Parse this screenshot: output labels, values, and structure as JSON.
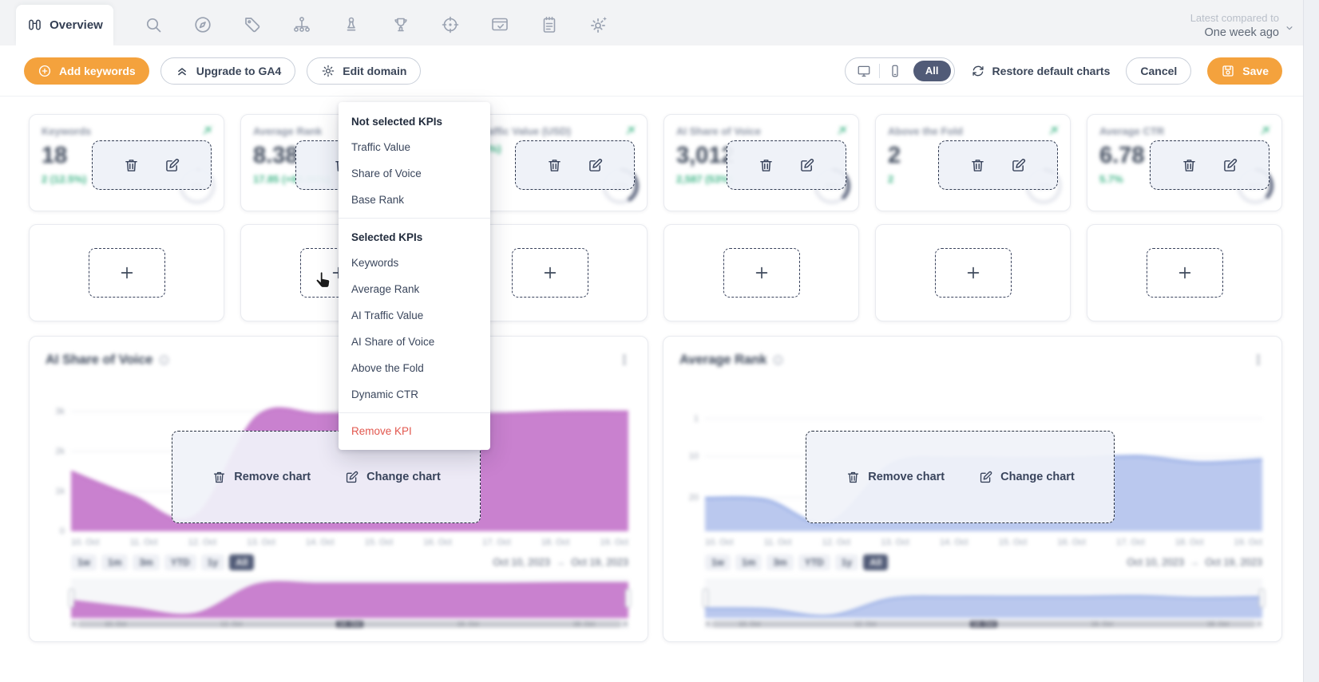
{
  "topnav": {
    "active_tab": "Overview",
    "compare_label": "Latest compared to",
    "compare_value": "One week ago"
  },
  "toolbar": {
    "add_keywords": "Add keywords",
    "upgrade_ga4": "Upgrade to GA4",
    "edit_domain": "Edit domain",
    "device_all": "All",
    "restore_charts": "Restore default charts",
    "cancel": "Cancel",
    "save": "Save"
  },
  "kpi_cards": [
    {
      "title": "Keywords",
      "value": "18",
      "delta": "2 (12.5%)",
      "gauge": "0%",
      "gauge_pct": 2
    },
    {
      "title": "Average Rank",
      "value": "8.38",
      "delta": "17.85 (+68.06%)",
      "gauge": "",
      "gauge_pct": null
    },
    {
      "title": "AI Traffic Value (USD)",
      "value": "",
      "delta": "(58.9%)",
      "gauge": "42%",
      "gauge_pct": 42
    },
    {
      "title": "AI Share of Voice",
      "value": "3,012",
      "delta": "2,587 (53%)",
      "gauge": "39%",
      "gauge_pct": 39
    },
    {
      "title": "Above the Fold",
      "value": "2",
      "delta": "2",
      "gauge": "11%",
      "gauge_pct": 11
    },
    {
      "title": "Average CTR",
      "value": "6.78",
      "delta": "5.7%",
      "gauge": "38%",
      "gauge_pct": 38
    }
  ],
  "kpi_menu": {
    "section1_header": "Not selected KPIs",
    "section1_items": [
      "Traffic Value",
      "Share of Voice",
      "Base Rank"
    ],
    "section2_header": "Selected KPIs",
    "section2_items": [
      "Keywords",
      "Average Rank",
      "AI Traffic Value",
      "AI Share of Voice",
      "Above the Fold",
      "Dynamic CTR"
    ],
    "remove_item": "Remove KPI"
  },
  "charts": [
    {
      "title": "AI Share of Voice",
      "overlay_remove": "Remove chart",
      "overlay_change": "Change chart",
      "range_buttons": [
        "1w",
        "1m",
        "3m",
        "YTD",
        "1y",
        "All"
      ],
      "active_range": "All",
      "date_from": "Oct 10, 2023",
      "date_separator": "→",
      "date_to": "Oct 19, 2023",
      "scroll_labels": [
        "10. Oct",
        "12. Oct",
        "14. Oct",
        "16. Oct",
        "18. Oct"
      ]
    },
    {
      "title": "Average Rank",
      "overlay_remove": "Remove chart",
      "overlay_change": "Change chart",
      "range_buttons": [
        "1w",
        "1m",
        "3m",
        "YTD",
        "1y",
        "All"
      ],
      "active_range": "All",
      "date_from": "Oct 10, 2023",
      "date_separator": "→",
      "date_to": "Oct 19, 2023",
      "scroll_labels": [
        "10. Oct",
        "12. Oct",
        "14. Oct",
        "16. Oct",
        "18. Oct"
      ]
    }
  ],
  "chart_data": [
    {
      "type": "area",
      "title": "AI Share of Voice",
      "x": [
        "10. Oct",
        "11. Oct",
        "12. Oct",
        "13. Oct",
        "14. Oct",
        "15. Oct",
        "16. Oct",
        "17. Oct",
        "18. Oct",
        "19. Oct"
      ],
      "ylim": [
        0,
        3400
      ],
      "yticks": [
        3000,
        2000,
        1000,
        0
      ],
      "ytick_labels": [
        "3k",
        "2k",
        "1k",
        "0"
      ],
      "inverted": false,
      "legend": "off",
      "grid": "on",
      "series": [
        {
          "name": "AI Share of Voice",
          "color": "#bf72c6",
          "fill": "#c981cf",
          "values": [
            1500,
            880,
            380,
            2880,
            2940,
            2940,
            2940,
            2950,
            3000,
            3000
          ]
        }
      ]
    },
    {
      "type": "area",
      "title": "Average Rank",
      "x": [
        "10. Oct",
        "11. Oct",
        "12. Oct",
        "13. Oct",
        "14. Oct",
        "15. Oct",
        "16. Oct",
        "17. Oct",
        "18. Oct",
        "19. Oct"
      ],
      "ylim": [
        -4.5,
        28
      ],
      "yticks": [
        1,
        10,
        20
      ],
      "ytick_labels": [
        "1",
        "10",
        "20"
      ],
      "inverted": true,
      "legend": "off",
      "grid": "on",
      "series": [
        {
          "name": "Base Rank",
          "color": "#ccd7f3",
          "fill": "#dce3f6",
          "values": [
            20.5,
            21,
            27,
            12.5,
            11,
            11,
            11,
            12,
            21,
            30
          ]
        },
        {
          "name": "Average Rank",
          "color": "#8ba4e2",
          "fill": "#bac8ee",
          "values": [
            20,
            20.5,
            26,
            12,
            10.5,
            10.6,
            10.5,
            10,
            11.5,
            10.8
          ]
        }
      ]
    }
  ]
}
